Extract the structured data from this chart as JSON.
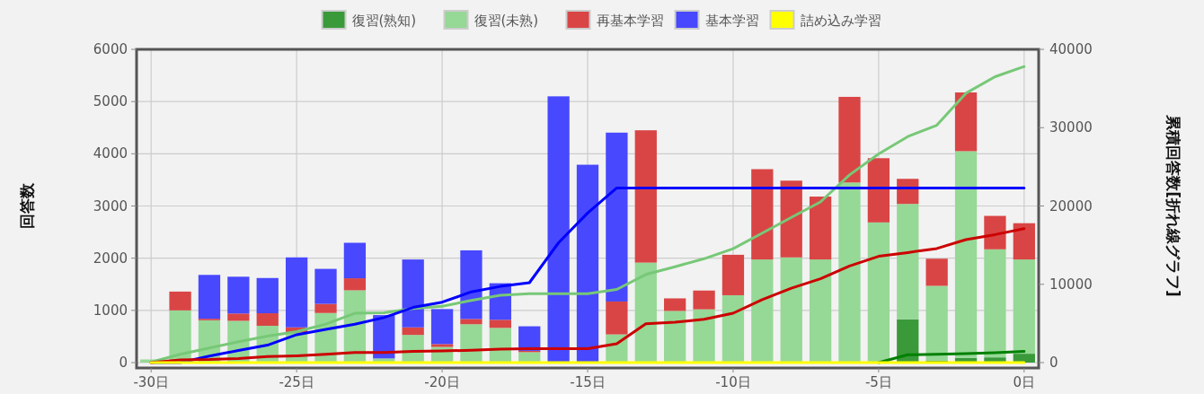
{
  "chart_data": {
    "type": "bar",
    "stacked": true,
    "ylabel": "回答数",
    "y2label": "累積回答数[折れ線グラフ]",
    "x": [
      -30,
      -29,
      -28,
      -27,
      -26,
      -25,
      -24,
      -23,
      -22,
      -21,
      -20,
      -19,
      -18,
      -17,
      -16,
      -15,
      -14,
      -13,
      -12,
      -11,
      -10,
      -9,
      -8,
      -7,
      -6,
      -5,
      -4,
      -3,
      -2,
      -1,
      0
    ],
    "xlim": [
      -30.5,
      0.5
    ],
    "xticks": [
      {
        "value": -30,
        "label": "-30日"
      },
      {
        "value": -25,
        "label": "-25日"
      },
      {
        "value": -20,
        "label": "-20日"
      },
      {
        "value": -15,
        "label": "-15日"
      },
      {
        "value": -10,
        "label": "-10日"
      },
      {
        "value": -5,
        "label": "-5日"
      },
      {
        "value": 0,
        "label": "0日"
      }
    ],
    "ylim": [
      0,
      6000
    ],
    "yticks": [
      0,
      1000,
      2000,
      3000,
      4000,
      5000,
      6000
    ],
    "y2lim": [
      0,
      40000
    ],
    "y2ticks": [
      0,
      10000,
      20000,
      30000,
      40000
    ],
    "grid": true,
    "legend": "top",
    "series": [
      {
        "name": "復習(熟知)",
        "color": "#3a9a3a",
        "values": [
          0,
          0,
          0,
          0,
          0,
          0,
          0,
          0,
          0,
          0,
          0,
          0,
          0,
          0,
          0,
          0,
          0,
          0,
          0,
          0,
          0,
          0,
          0,
          0,
          0,
          0,
          830,
          40,
          90,
          100,
          170
        ]
      },
      {
        "name": "復習(未熟)",
        "color": "#96d896",
        "values": [
          60,
          1000,
          810,
          800,
          705,
          575,
          950,
          1385,
          80,
          530,
          300,
          735,
          665,
          200,
          0,
          0,
          540,
          1915,
          990,
          1020,
          1290,
          1975,
          2015,
          1975,
          3450,
          2685,
          2210,
          1430,
          3960,
          2070,
          1805
        ]
      },
      {
        "name": "再基本学習",
        "color": "#d94545",
        "values": [
          0,
          360,
          30,
          140,
          240,
          100,
          175,
          230,
          0,
          145,
          55,
          100,
          155,
          25,
          0,
          0,
          630,
          2535,
          240,
          360,
          775,
          1730,
          1470,
          1205,
          1640,
          1230,
          480,
          520,
          1125,
          640,
          695
        ]
      },
      {
        "name": "基本学習",
        "color": "#4848ff",
        "values": [
          0,
          0,
          840,
          705,
          675,
          1340,
          670,
          680,
          830,
          1300,
          670,
          1315,
          700,
          470,
          5100,
          3790,
          3235,
          0,
          0,
          0,
          0,
          0,
          0,
          0,
          0,
          0,
          0,
          0,
          0,
          0,
          0
        ]
      },
      {
        "name": "詰め込み学習",
        "color": "#ffff00",
        "values": [
          0,
          0,
          0,
          0,
          0,
          0,
          0,
          0,
          0,
          0,
          0,
          0,
          0,
          0,
          0,
          0,
          0,
          0,
          0,
          0,
          0,
          0,
          0,
          0,
          0,
          0,
          0,
          0,
          0,
          0,
          0
        ]
      },
      {
        "type": "line",
        "axis": "y2",
        "color": "#77c877",
        "values": [
          60,
          1060,
          1870,
          2670,
          3380,
          3950,
          4900,
          6290,
          6370,
          6900,
          7200,
          7930,
          8600,
          8800,
          8800,
          8800,
          9340,
          11250,
          12240,
          13260,
          14550,
          16530,
          18540,
          20520,
          23970,
          26650,
          28860,
          30300,
          34400,
          36500,
          37800
        ]
      },
      {
        "type": "line",
        "axis": "y2",
        "color": "#0000ff",
        "values": [
          0,
          0,
          840,
          1550,
          2220,
          3560,
          4230,
          4910,
          5740,
          7040,
          7710,
          9030,
          9730,
          10200,
          15300,
          19090,
          22300,
          22300,
          22300,
          22300,
          22300,
          22300,
          22300,
          22300,
          22300,
          22300,
          22300,
          22300,
          22300,
          22300,
          22300
        ]
      },
      {
        "type": "line",
        "axis": "y2",
        "color": "#cc0000",
        "values": [
          0,
          360,
          390,
          530,
          770,
          870,
          1050,
          1280,
          1280,
          1420,
          1480,
          1580,
          1730,
          1760,
          1760,
          1760,
          2390,
          4950,
          5160,
          5520,
          6300,
          8030,
          9500,
          10700,
          12340,
          13570,
          14050,
          14570,
          15700,
          16340,
          17100
        ]
      },
      {
        "type": "line",
        "axis": "y2",
        "color": "#008000",
        "values": [
          null,
          null,
          null,
          null,
          null,
          null,
          null,
          null,
          null,
          null,
          null,
          null,
          null,
          null,
          null,
          null,
          null,
          null,
          null,
          null,
          null,
          null,
          null,
          null,
          null,
          0,
          1000,
          1050,
          1150,
          1250,
          1420
        ]
      },
      {
        "type": "line",
        "axis": "y2",
        "color": "#ffff00",
        "values": [
          0,
          0,
          0,
          0,
          0,
          0,
          0,
          0,
          0,
          0,
          0,
          0,
          0,
          0,
          0,
          0,
          0,
          0,
          0,
          0,
          0,
          0,
          0,
          0,
          0,
          0,
          0,
          0,
          0,
          0,
          0
        ]
      }
    ]
  }
}
